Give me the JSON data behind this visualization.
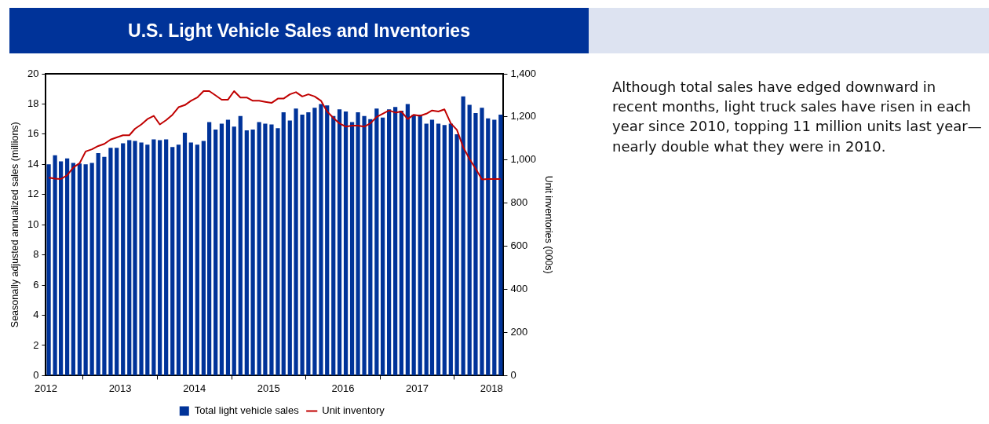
{
  "chart_data": {
    "type": "bar",
    "title": "U.S. Light Vehicle Sales and Inventories",
    "ylabel": "Seasonally adjusted annualized sales (millions)",
    "y2label": "Unit inventories (000s)",
    "annotations": [
      "Although total sales have edged downward in recent months, light truck sales have risen in each year since 2010, topping 11 million units last year—nearly double what they were in 2010."
    ],
    "x": [
      "2012-01-15",
      "2012-02-15",
      "2012-03-15",
      "2012-04-15",
      "2012-05-15",
      "2012-06-15",
      "2012-07-15",
      "2012-08-15",
      "2012-09-15",
      "2012-10-15",
      "2012-11-15",
      "2012-12-15",
      "2013-01-15",
      "2013-02-15",
      "2013-03-15",
      "2013-04-15",
      "2013-05-15",
      "2013-06-15",
      "2013-07-15",
      "2013-08-15",
      "2013-09-15",
      "2013-10-15",
      "2013-11-15",
      "2013-12-15",
      "2014-01-15",
      "2014-02-15",
      "2014-03-15",
      "2014-04-15",
      "2014-05-15",
      "2014-06-15",
      "2014-07-15",
      "2014-08-15",
      "2014-09-15",
      "2014-10-15",
      "2014-11-15",
      "2014-12-15",
      "2015-01-15",
      "2015-02-15",
      "2015-03-15",
      "2015-04-15",
      "2015-05-15",
      "2015-06-15",
      "2015-07-15",
      "2015-08-15",
      "2015-09-15",
      "2015-10-15",
      "2015-11-15",
      "2015-12-15",
      "2016-01-15",
      "2016-02-15",
      "2016-03-15",
      "2016-04-15",
      "2016-05-15",
      "2016-06-15",
      "2016-07-15",
      "2016-08-15",
      "2016-09-15",
      "2016-10-15",
      "2016-11-15",
      "2016-12-15",
      "2017-01-15",
      "2017-02-15",
      "2017-03-15",
      "2017-04-15",
      "2017-05-15",
      "2017-06-15",
      "2017-07-15",
      "2017-08-15",
      "2017-09-15",
      "2017-10-15",
      "2017-11-15",
      "2017-12-15",
      "2018-01-15",
      "2018-02-15"
    ],
    "series": [
      {
        "name": "Total light vehicle sales",
        "color": "#003399",
        "values": [
          14.0,
          14.6,
          14.2,
          14.4,
          14.1,
          14.05,
          14.0,
          14.1,
          14.75,
          14.5,
          15.1,
          15.1,
          15.4,
          15.6,
          15.55,
          15.45,
          15.3,
          15.65,
          15.6,
          15.65,
          15.15,
          15.3,
          16.1,
          15.45,
          15.3,
          15.55,
          16.8,
          16.3,
          16.7,
          16.95,
          16.5,
          17.2,
          16.25,
          16.3,
          16.8,
          16.7,
          16.65,
          16.4,
          17.45,
          16.9,
          17.7,
          17.3,
          17.45,
          17.75,
          18.0,
          17.9,
          17.2,
          17.65,
          17.5,
          16.8,
          17.45,
          17.2,
          17.0,
          17.7,
          17.1,
          17.65,
          17.8,
          17.55,
          18.0,
          17.3,
          17.3,
          16.7,
          16.95,
          16.7,
          16.6,
          16.7,
          16.0,
          18.5,
          17.95,
          17.4,
          17.75,
          17.05,
          16.95,
          17.3
        ]
      },
      {
        "name": "Unit inventory",
        "type": "line",
        "axis": "y2",
        "color": "#c00000",
        "values": [
          918,
          914,
          912,
          930,
          965,
          985,
          1040,
          1050,
          1065,
          1075,
          1095,
          1105,
          1115,
          1115,
          1145,
          1165,
          1190,
          1205,
          1165,
          1185,
          1210,
          1245,
          1255,
          1275,
          1290,
          1320,
          1320,
          1300,
          1280,
          1280,
          1320,
          1290,
          1290,
          1275,
          1275,
          1270,
          1265,
          1285,
          1285,
          1305,
          1315,
          1295,
          1305,
          1295,
          1275,
          1225,
          1195,
          1170,
          1155,
          1160,
          1160,
          1155,
          1170,
          1200,
          1215,
          1230,
          1220,
          1225,
          1190,
          1210,
          1205,
          1215,
          1230,
          1225,
          1235,
          1170,
          1140,
          1060,
          1005,
          960,
          910,
          912,
          912,
          912
        ]
      }
    ],
    "xlim": [
      "2012-01-01",
      "2018-03-01"
    ],
    "xticks": [
      "2012",
      "2013",
      "2014",
      "2015",
      "2016",
      "2017",
      "2018"
    ],
    "ylim": [
      0,
      20
    ],
    "yticks": [
      0,
      2,
      4,
      6,
      8,
      10,
      12,
      14,
      16,
      18,
      20
    ],
    "y2lim": [
      0,
      1400
    ],
    "y2ticks": [
      {
        "value": 0,
        "label": "0"
      },
      {
        "value": 200,
        "label": "200"
      },
      {
        "value": 400,
        "label": "400"
      },
      {
        "value": 600,
        "label": "600"
      },
      {
        "value": 800,
        "label": "800"
      },
      {
        "value": 1000,
        "label": "1,000"
      },
      {
        "value": 1200,
        "label": "1,200"
      },
      {
        "value": 1400,
        "label": "1,400"
      }
    ],
    "grid": false,
    "legend": "bottom",
    "marker": "none",
    "line_style": "solid"
  }
}
